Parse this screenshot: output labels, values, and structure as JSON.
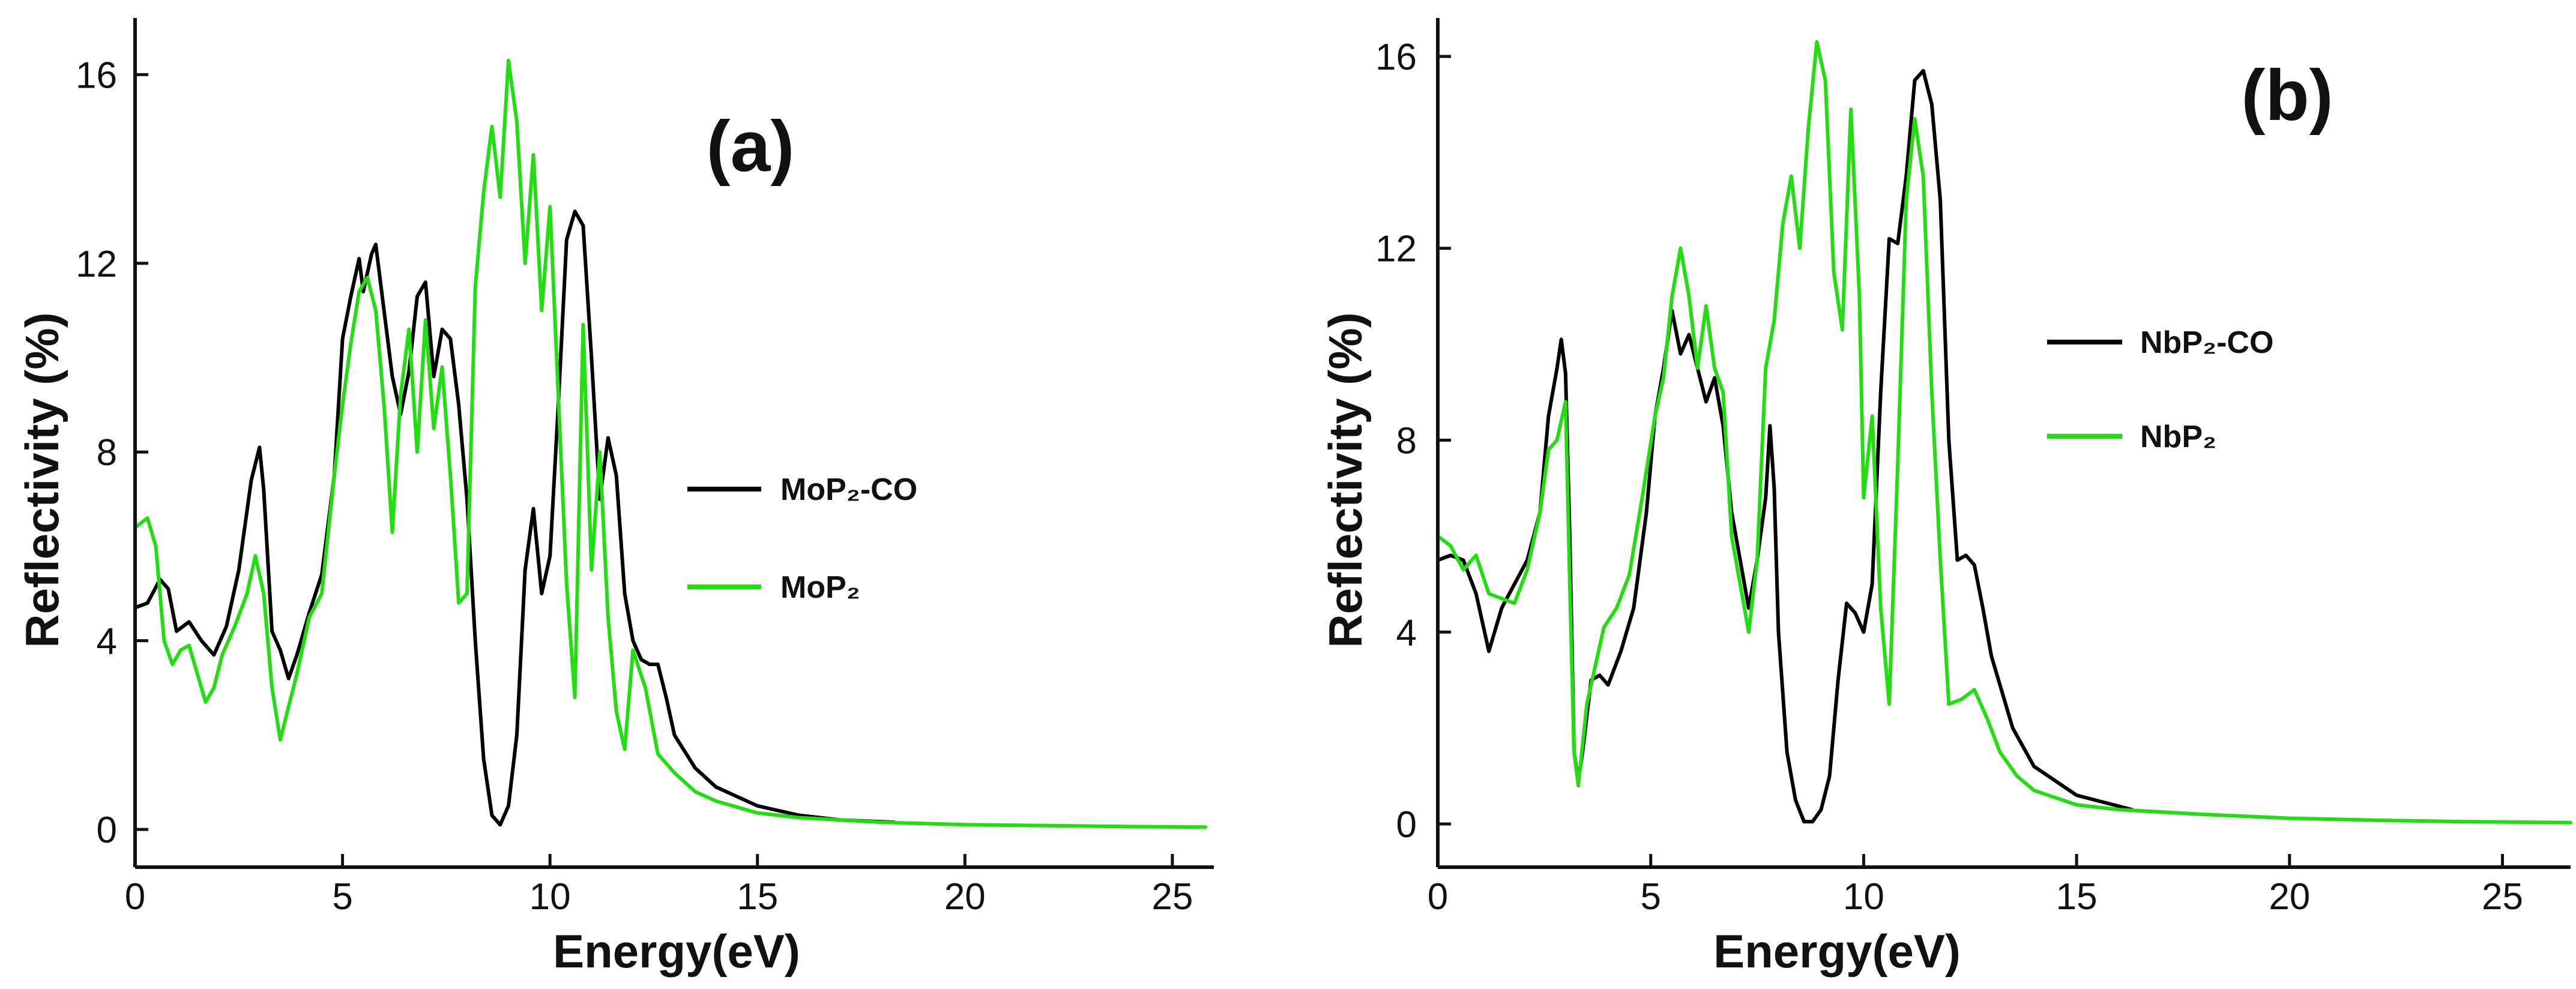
{
  "chart_data": [
    {
      "type": "line",
      "panel_label": "(a)",
      "xlabel": "Energy(eV)",
      "ylabel": "Reflectivity (%)",
      "xlim": [
        0,
        26
      ],
      "ylim": [
        -0.8,
        17.2
      ],
      "xticks": [
        0,
        5,
        10,
        15,
        20,
        25
      ],
      "yticks": [
        0,
        4,
        8,
        12,
        16
      ],
      "legend_position": "center-right",
      "series": [
        {
          "name": "MoP₂-CO",
          "color": "#000000",
          "points": [
            [
              0,
              4.7
            ],
            [
              0.3,
              4.8
            ],
            [
              0.6,
              5.3
            ],
            [
              0.8,
              5.1
            ],
            [
              1.0,
              4.2
            ],
            [
              1.3,
              4.4
            ],
            [
              1.6,
              4.0
            ],
            [
              1.9,
              3.7
            ],
            [
              2.2,
              4.3
            ],
            [
              2.5,
              5.5
            ],
            [
              2.8,
              7.4
            ],
            [
              3.0,
              8.1
            ],
            [
              3.1,
              7.2
            ],
            [
              3.3,
              4.2
            ],
            [
              3.5,
              3.8
            ],
            [
              3.7,
              3.2
            ],
            [
              3.9,
              3.7
            ],
            [
              4.2,
              4.6
            ],
            [
              4.5,
              5.4
            ],
            [
              4.8,
              7.5
            ],
            [
              5.0,
              10.4
            ],
            [
              5.2,
              11.3
            ],
            [
              5.4,
              12.1
            ],
            [
              5.5,
              11.4
            ],
            [
              5.7,
              12.2
            ],
            [
              5.8,
              12.4
            ],
            [
              6.0,
              11.0
            ],
            [
              6.2,
              9.6
            ],
            [
              6.4,
              8.8
            ],
            [
              6.6,
              9.7
            ],
            [
              6.8,
              11.3
            ],
            [
              7.0,
              11.6
            ],
            [
              7.2,
              9.6
            ],
            [
              7.4,
              10.6
            ],
            [
              7.6,
              10.4
            ],
            [
              7.8,
              9.0
            ],
            [
              8.0,
              7.0
            ],
            [
              8.2,
              4.0
            ],
            [
              8.4,
              1.5
            ],
            [
              8.6,
              0.3
            ],
            [
              8.8,
              0.1
            ],
            [
              9.0,
              0.5
            ],
            [
              9.2,
              2.0
            ],
            [
              9.4,
              5.5
            ],
            [
              9.6,
              6.8
            ],
            [
              9.8,
              5.0
            ],
            [
              10.0,
              5.8
            ],
            [
              10.2,
              9.0
            ],
            [
              10.4,
              12.5
            ],
            [
              10.6,
              13.1
            ],
            [
              10.8,
              12.8
            ],
            [
              11.0,
              10.0
            ],
            [
              11.2,
              7.0
            ],
            [
              11.4,
              8.3
            ],
            [
              11.6,
              7.5
            ],
            [
              11.8,
              5.0
            ],
            [
              12.0,
              4.0
            ],
            [
              12.2,
              3.6
            ],
            [
              12.4,
              3.5
            ],
            [
              12.6,
              3.5
            ],
            [
              12.8,
              2.8
            ],
            [
              13.0,
              2.0
            ],
            [
              13.5,
              1.3
            ],
            [
              14.0,
              0.9
            ],
            [
              15.0,
              0.5
            ],
            [
              16.0,
              0.3
            ],
            [
              17.0,
              0.2
            ],
            [
              18.3,
              0.15
            ]
          ]
        },
        {
          "name": "MoP₂",
          "color": "#22dd10",
          "points": [
            [
              0,
              6.4
            ],
            [
              0.3,
              6.6
            ],
            [
              0.5,
              6.0
            ],
            [
              0.7,
              4.0
            ],
            [
              0.9,
              3.5
            ],
            [
              1.1,
              3.8
            ],
            [
              1.3,
              3.9
            ],
            [
              1.5,
              3.3
            ],
            [
              1.7,
              2.7
            ],
            [
              1.9,
              3.0
            ],
            [
              2.1,
              3.7
            ],
            [
              2.4,
              4.3
            ],
            [
              2.7,
              5.0
            ],
            [
              2.9,
              5.8
            ],
            [
              3.1,
              5.0
            ],
            [
              3.3,
              3.0
            ],
            [
              3.5,
              1.9
            ],
            [
              3.7,
              2.6
            ],
            [
              3.9,
              3.3
            ],
            [
              4.2,
              4.5
            ],
            [
              4.5,
              5.0
            ],
            [
              4.8,
              7.5
            ],
            [
              5.0,
              9.0
            ],
            [
              5.2,
              10.3
            ],
            [
              5.4,
              11.4
            ],
            [
              5.6,
              11.7
            ],
            [
              5.8,
              11.0
            ],
            [
              6.0,
              9.0
            ],
            [
              6.2,
              6.3
            ],
            [
              6.4,
              9.2
            ],
            [
              6.6,
              10.6
            ],
            [
              6.8,
              8.0
            ],
            [
              7.0,
              10.8
            ],
            [
              7.2,
              8.5
            ],
            [
              7.4,
              9.8
            ],
            [
              7.6,
              7.5
            ],
            [
              7.8,
              4.8
            ],
            [
              8.0,
              5.0
            ],
            [
              8.2,
              11.5
            ],
            [
              8.4,
              13.5
            ],
            [
              8.6,
              14.9
            ],
            [
              8.8,
              13.4
            ],
            [
              9.0,
              16.3
            ],
            [
              9.2,
              15.0
            ],
            [
              9.4,
              12.0
            ],
            [
              9.6,
              14.3
            ],
            [
              9.8,
              11.0
            ],
            [
              10.0,
              13.2
            ],
            [
              10.2,
              9.2
            ],
            [
              10.4,
              5.2
            ],
            [
              10.6,
              2.8
            ],
            [
              10.8,
              10.7
            ],
            [
              11.0,
              5.5
            ],
            [
              11.2,
              8.0
            ],
            [
              11.4,
              4.5
            ],
            [
              11.6,
              2.5
            ],
            [
              11.8,
              1.7
            ],
            [
              12.0,
              3.8
            ],
            [
              12.3,
              3.0
            ],
            [
              12.6,
              1.6
            ],
            [
              13.0,
              1.2
            ],
            [
              13.5,
              0.8
            ],
            [
              14.0,
              0.6
            ],
            [
              15.0,
              0.35
            ],
            [
              16.0,
              0.25
            ],
            [
              18.0,
              0.15
            ],
            [
              20.0,
              0.1
            ],
            [
              22.0,
              0.08
            ],
            [
              24.0,
              0.06
            ],
            [
              25.8,
              0.05
            ]
          ]
        }
      ]
    },
    {
      "type": "line",
      "panel_label": "(b)",
      "xlabel": "Energy(eV)",
      "ylabel": "Reflectivity (%)",
      "xlim": [
        0,
        26.6
      ],
      "ylim": [
        -0.9,
        16.8
      ],
      "xticks": [
        0,
        5,
        10,
        15,
        20,
        25
      ],
      "yticks": [
        0,
        4,
        8,
        12,
        16
      ],
      "legend_position": "center-right",
      "series": [
        {
          "name": "NbP₂-CO",
          "color": "#000000",
          "points": [
            [
              0,
              5.5
            ],
            [
              0.3,
              5.6
            ],
            [
              0.6,
              5.5
            ],
            [
              0.9,
              4.8
            ],
            [
              1.2,
              3.6
            ],
            [
              1.5,
              4.5
            ],
            [
              1.8,
              5.0
            ],
            [
              2.1,
              5.5
            ],
            [
              2.4,
              6.5
            ],
            [
              2.6,
              8.5
            ],
            [
              2.8,
              9.5
            ],
            [
              2.9,
              10.1
            ],
            [
              3.0,
              9.4
            ],
            [
              3.1,
              6.0
            ],
            [
              3.2,
              1.5
            ],
            [
              3.3,
              0.9
            ],
            [
              3.4,
              1.5
            ],
            [
              3.6,
              3.0
            ],
            [
              3.8,
              3.1
            ],
            [
              4.0,
              2.9
            ],
            [
              4.3,
              3.6
            ],
            [
              4.6,
              4.5
            ],
            [
              4.9,
              6.5
            ],
            [
              5.1,
              8.5
            ],
            [
              5.3,
              9.5
            ],
            [
              5.5,
              10.7
            ],
            [
              5.7,
              9.8
            ],
            [
              5.9,
              10.2
            ],
            [
              6.1,
              9.5
            ],
            [
              6.3,
              8.8
            ],
            [
              6.5,
              9.3
            ],
            [
              6.7,
              8.3
            ],
            [
              6.9,
              6.5
            ],
            [
              7.1,
              5.5
            ],
            [
              7.3,
              4.5
            ],
            [
              7.5,
              5.5
            ],
            [
              7.7,
              6.8
            ],
            [
              7.8,
              8.3
            ],
            [
              7.9,
              7.0
            ],
            [
              8.0,
              4.0
            ],
            [
              8.2,
              1.5
            ],
            [
              8.4,
              0.5
            ],
            [
              8.6,
              0.05
            ],
            [
              8.8,
              0.05
            ],
            [
              9.0,
              0.3
            ],
            [
              9.2,
              1.0
            ],
            [
              9.4,
              3.0
            ],
            [
              9.6,
              4.6
            ],
            [
              9.8,
              4.4
            ],
            [
              10.0,
              4.0
            ],
            [
              10.2,
              5.0
            ],
            [
              10.4,
              9.0
            ],
            [
              10.6,
              12.2
            ],
            [
              10.8,
              12.1
            ],
            [
              11.0,
              13.5
            ],
            [
              11.2,
              15.5
            ],
            [
              11.4,
              15.7
            ],
            [
              11.6,
              15.0
            ],
            [
              11.8,
              13.0
            ],
            [
              12.0,
              8.0
            ],
            [
              12.2,
              5.5
            ],
            [
              12.4,
              5.6
            ],
            [
              12.6,
              5.4
            ],
            [
              12.8,
              4.5
            ],
            [
              13.0,
              3.5
            ],
            [
              13.5,
              2.0
            ],
            [
              14.0,
              1.2
            ],
            [
              15.0,
              0.6
            ],
            [
              16.3,
              0.3
            ]
          ]
        },
        {
          "name": "NbP₂",
          "color": "#22dd10",
          "points": [
            [
              0,
              6.0
            ],
            [
              0.3,
              5.8
            ],
            [
              0.6,
              5.3
            ],
            [
              0.9,
              5.6
            ],
            [
              1.2,
              4.8
            ],
            [
              1.5,
              4.7
            ],
            [
              1.8,
              4.6
            ],
            [
              2.1,
              5.3
            ],
            [
              2.4,
              6.5
            ],
            [
              2.6,
              7.8
            ],
            [
              2.8,
              8.0
            ],
            [
              3.0,
              8.8
            ],
            [
              3.1,
              5.0
            ],
            [
              3.2,
              1.5
            ],
            [
              3.3,
              0.8
            ],
            [
              3.5,
              2.5
            ],
            [
              3.7,
              3.3
            ],
            [
              3.9,
              4.1
            ],
            [
              4.2,
              4.5
            ],
            [
              4.5,
              5.2
            ],
            [
              4.8,
              6.8
            ],
            [
              5.1,
              8.5
            ],
            [
              5.3,
              9.3
            ],
            [
              5.5,
              11.0
            ],
            [
              5.7,
              12.0
            ],
            [
              5.9,
              11.0
            ],
            [
              6.1,
              9.5
            ],
            [
              6.3,
              10.8
            ],
            [
              6.5,
              9.5
            ],
            [
              6.7,
              9.0
            ],
            [
              6.9,
              6.0
            ],
            [
              7.1,
              5.0
            ],
            [
              7.3,
              4.0
            ],
            [
              7.5,
              5.5
            ],
            [
              7.7,
              9.5
            ],
            [
              7.9,
              10.5
            ],
            [
              8.1,
              12.5
            ],
            [
              8.3,
              13.5
            ],
            [
              8.5,
              12.0
            ],
            [
              8.7,
              14.5
            ],
            [
              8.9,
              16.3
            ],
            [
              9.1,
              15.5
            ],
            [
              9.3,
              11.5
            ],
            [
              9.5,
              10.3
            ],
            [
              9.7,
              14.9
            ],
            [
              9.9,
              11.0
            ],
            [
              10.0,
              6.8
            ],
            [
              10.2,
              8.5
            ],
            [
              10.4,
              4.5
            ],
            [
              10.6,
              2.5
            ],
            [
              10.8,
              7.5
            ],
            [
              11.0,
              13.0
            ],
            [
              11.2,
              14.7
            ],
            [
              11.4,
              13.5
            ],
            [
              11.6,
              9.0
            ],
            [
              11.8,
              5.5
            ],
            [
              12.0,
              2.5
            ],
            [
              12.3,
              2.6
            ],
            [
              12.6,
              2.8
            ],
            [
              12.9,
              2.2
            ],
            [
              13.2,
              1.5
            ],
            [
              13.6,
              1.0
            ],
            [
              14.0,
              0.7
            ],
            [
              15.0,
              0.4
            ],
            [
              16.0,
              0.3
            ],
            [
              18.0,
              0.2
            ],
            [
              20.0,
              0.12
            ],
            [
              22.0,
              0.08
            ],
            [
              24.0,
              0.05
            ],
            [
              26.6,
              0.03
            ]
          ]
        }
      ]
    }
  ]
}
